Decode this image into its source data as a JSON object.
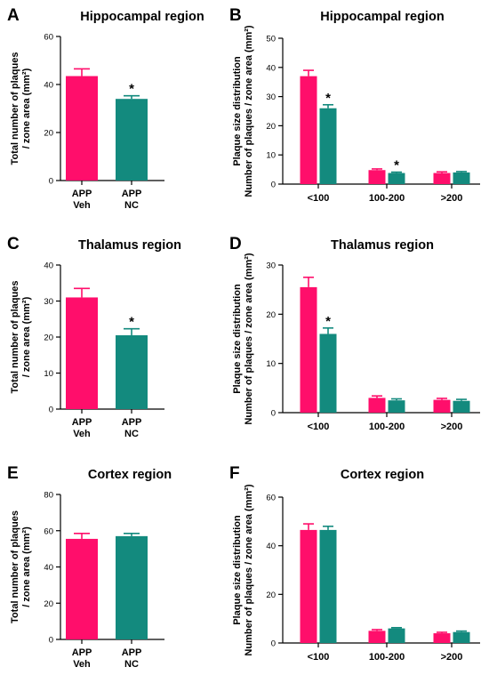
{
  "colors": {
    "veh": "#ff0e6b",
    "nc": "#138a7e",
    "axis": "#000000"
  },
  "chart_data": [
    {
      "panel": "A",
      "type": "bar",
      "title": "Hippocampal region",
      "ylabel": [
        "Total number of plaques",
        "/ zone area (mm²)"
      ],
      "ylim": [
        0,
        60
      ],
      "yticks": [
        0,
        20,
        40,
        60
      ],
      "categories": [
        [
          "APP",
          "Veh"
        ],
        [
          "APP",
          "NC"
        ]
      ],
      "values": [
        43.5,
        34.0
      ],
      "errors": [
        3.0,
        1.3
      ],
      "significant": [
        false,
        true
      ]
    },
    {
      "panel": "B",
      "type": "bar",
      "title": "Hippocampal region",
      "ylabel": [
        "Plaque size distribution",
        "Number of plaques / zone area (mm²)"
      ],
      "ylim": [
        0,
        50
      ],
      "yticks": [
        0,
        10,
        20,
        30,
        40,
        50
      ],
      "categories": [
        "<100",
        "100-200",
        ">200"
      ],
      "series": [
        {
          "values": [
            37.0,
            4.8,
            3.8
          ],
          "errors": [
            2.0,
            0.4,
            0.4
          ],
          "significant": [
            false,
            false,
            false
          ]
        },
        {
          "values": [
            26.0,
            3.8,
            4.0
          ],
          "errors": [
            1.2,
            0.3,
            0.3
          ],
          "significant": [
            true,
            true,
            false
          ]
        }
      ]
    },
    {
      "panel": "C",
      "type": "bar",
      "title": "Thalamus region",
      "ylabel": [
        "Total number of plaques",
        "/ zone area (mm²)"
      ],
      "ylim": [
        0,
        40
      ],
      "yticks": [
        0,
        10,
        20,
        30,
        40
      ],
      "categories": [
        [
          "APP",
          "Veh"
        ],
        [
          "APP",
          "NC"
        ]
      ],
      "values": [
        31.0,
        20.5
      ],
      "errors": [
        2.5,
        1.8
      ],
      "significant": [
        false,
        true
      ]
    },
    {
      "panel": "D",
      "type": "bar",
      "title": "Thalamus region",
      "ylabel": [
        "Plaque size distribution",
        "Number of plaques / zone area (mm²)"
      ],
      "ylim": [
        0,
        30
      ],
      "yticks": [
        0,
        10,
        20,
        30
      ],
      "categories": [
        "<100",
        "100-200",
        ">200"
      ],
      "series": [
        {
          "values": [
            25.5,
            3.0,
            2.6
          ],
          "errors": [
            2.0,
            0.4,
            0.3
          ],
          "significant": [
            false,
            false,
            false
          ]
        },
        {
          "values": [
            16.0,
            2.5,
            2.4
          ],
          "errors": [
            1.2,
            0.3,
            0.3
          ],
          "significant": [
            true,
            false,
            false
          ]
        }
      ]
    },
    {
      "panel": "E",
      "type": "bar",
      "title": "Cortex region",
      "ylabel": [
        "Total number of plaques",
        "/ zone area (mm²)"
      ],
      "ylim": [
        0,
        80
      ],
      "yticks": [
        0,
        20,
        40,
        60,
        80
      ],
      "categories": [
        [
          "APP",
          "Veh"
        ],
        [
          "APP",
          "NC"
        ]
      ],
      "values": [
        55.5,
        57.0
      ],
      "errors": [
        3.0,
        1.5
      ],
      "significant": [
        false,
        false
      ]
    },
    {
      "panel": "F",
      "type": "bar",
      "title": "Cortex region",
      "ylabel": [
        "Plaque size distribution",
        "Number of plaques / zone area (mm²)"
      ],
      "ylim": [
        0,
        60
      ],
      "yticks": [
        0,
        20,
        40,
        60
      ],
      "categories": [
        "<100",
        "100-200",
        ">200"
      ],
      "series": [
        {
          "values": [
            46.5,
            5.0,
            4.0
          ],
          "errors": [
            2.5,
            0.5,
            0.4
          ],
          "significant": [
            false,
            false,
            false
          ]
        },
        {
          "values": [
            46.5,
            6.0,
            4.5
          ],
          "errors": [
            1.5,
            0.3,
            0.4
          ],
          "significant": [
            false,
            false,
            false
          ]
        }
      ]
    }
  ]
}
